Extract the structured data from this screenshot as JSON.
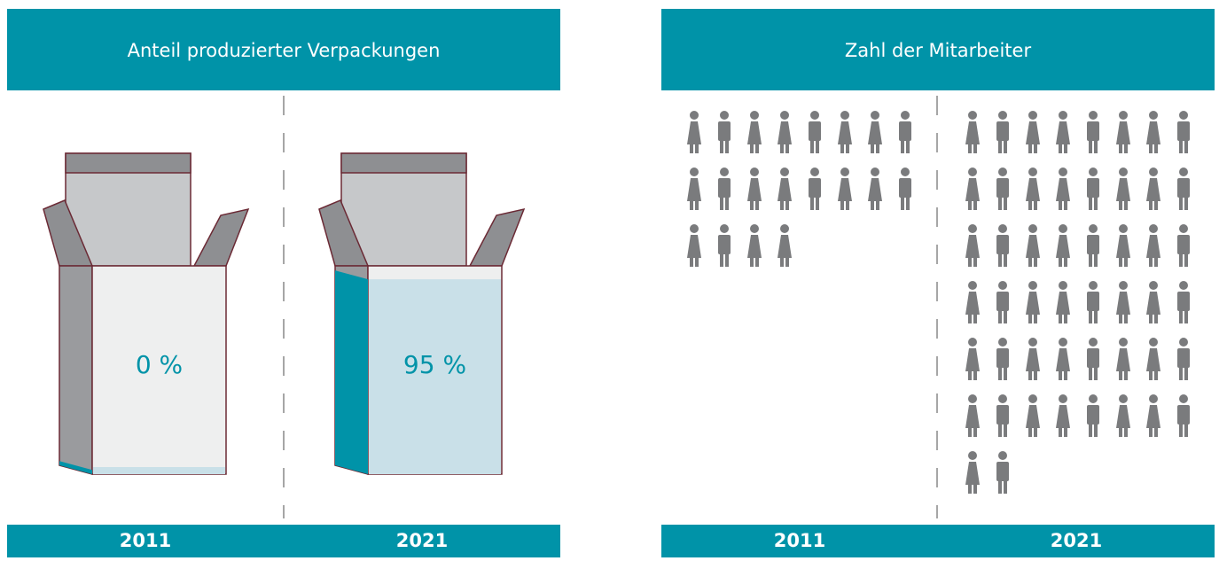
{
  "panels": [
    {
      "title": "Anteil produzierter Verpackungen",
      "type": "box",
      "columns": [
        {
          "year": "2011",
          "value": 0,
          "value_label": "0 %"
        },
        {
          "year": "2021",
          "value": 95,
          "value_label": "95 %"
        }
      ]
    },
    {
      "title": "Zahl der Mitarbeiter",
      "type": "people",
      "columns": [
        {
          "year": "2011",
          "value": 20
        },
        {
          "year": "2021",
          "value": 50
        }
      ]
    }
  ]
}
